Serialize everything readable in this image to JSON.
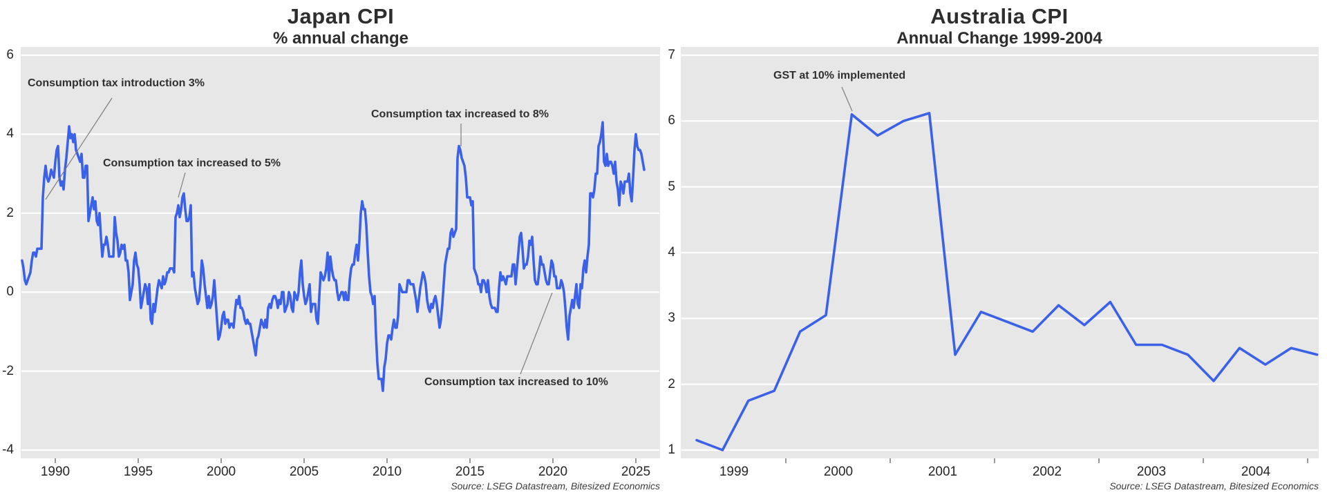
{
  "chart_data": [
    {
      "type": "line",
      "title": "Japan CPI",
      "subtitle": "% annual change",
      "source": "Source: LSEG Datastream, Bitesized Economics",
      "frequency": "monthly",
      "x_start": 1988.0,
      "x_step": 0.083333,
      "xlim": [
        1987.9,
        2026.5
      ],
      "ylim": [
        -4,
        6
      ],
      "grid": "horizontal-white-on-gray",
      "legend": "none",
      "line_color": "#3b61e6",
      "plot_background": "#e7e7e7",
      "y_ticks": [
        6,
        4,
        2,
        0,
        -2,
        -4
      ],
      "x_tick_labels": [
        "1990",
        "1995",
        "2000",
        "2005",
        "2010",
        "2015",
        "2020",
        "2025"
      ],
      "annotations": [
        "Consumption tax introduction 3%",
        "Consumption tax increased to 5%",
        "Consumption tax increased to 8%",
        "Consumption tax increased to 10%"
      ],
      "values": [
        0.8,
        0.6,
        0.3,
        0.2,
        0.3,
        0.4,
        0.5,
        0.8,
        1.0,
        1.0,
        0.9,
        1.1,
        1.1,
        1.1,
        1.1,
        2.4,
        2.9,
        3.2,
        2.9,
        2.8,
        2.9,
        3.1,
        3.0,
        2.9,
        3.3,
        3.6,
        3.7,
        2.9,
        2.7,
        2.8,
        2.6,
        3.1,
        3.4,
        3.8,
        4.2,
        3.9,
        4.0,
        3.8,
        4.0,
        3.6,
        3.5,
        3.4,
        3.3,
        3.5,
        2.9,
        2.9,
        3.2,
        3.2,
        1.8,
        2.0,
        2.2,
        2.4,
        2.1,
        2.3,
        1.8,
        1.7,
        2.0,
        1.4,
        0.9,
        1.2,
        1.2,
        1.4,
        1.2,
        0.9,
        0.9,
        0.9,
        0.9,
        1.9,
        1.5,
        1.3,
        0.9,
        1.0,
        1.2,
        1.1,
        1.2,
        0.8,
        0.8,
        0.5,
        -0.2,
        0.0,
        0.2,
        0.8,
        1.0,
        0.7,
        0.6,
        0.2,
        -0.4,
        -0.2,
        0.0,
        0.2,
        0.1,
        -0.3,
        0.2,
        -0.7,
        -0.8,
        -0.3,
        -0.5,
        -0.2,
        0.1,
        0.3,
        0.2,
        0.1,
        0.4,
        0.2,
        0.3,
        0.5,
        0.5,
        0.6,
        0.6,
        0.6,
        0.5,
        1.9,
        2.0,
        2.2,
        1.9,
        2.1,
        2.4,
        2.5,
        2.1,
        1.8,
        1.8,
        1.9,
        2.2,
        0.4,
        0.5,
        0.1,
        -0.1,
        -0.3,
        -0.2,
        0.2,
        0.8,
        0.6,
        0.2,
        -0.1,
        -0.4,
        -0.1,
        -0.4,
        -0.3,
        -0.1,
        0.3,
        -0.2,
        -0.7,
        -1.2,
        -1.1,
        -0.9,
        -0.6,
        -0.5,
        -0.8,
        -0.7,
        -0.7,
        -0.9,
        -0.8,
        -0.8,
        -0.9,
        -0.5,
        -0.2,
        -0.3,
        -0.1,
        -0.4,
        -0.4,
        -0.5,
        -0.7,
        -0.8,
        -0.7,
        -0.8,
        -0.8,
        -1.0,
        -1.2,
        -1.4,
        -1.6,
        -1.2,
        -1.1,
        -0.9,
        -0.7,
        -0.8,
        -0.9,
        -0.7,
        -0.9,
        -0.4,
        -0.3,
        -0.4,
        -0.2,
        -0.1,
        -0.1,
        -0.2,
        -0.4,
        -0.2,
        -0.3,
        0.0,
        0.0,
        -0.5,
        -0.4,
        -0.3,
        0.0,
        -0.1,
        -0.4,
        -0.5,
        0.0,
        -0.1,
        -0.2,
        0.0,
        0.5,
        0.8,
        0.2,
        -0.1,
        -0.3,
        -0.2,
        0.0,
        0.2,
        -0.5,
        -0.3,
        -0.3,
        -0.3,
        -0.7,
        -0.8,
        -0.1,
        0.5,
        0.4,
        0.3,
        0.4,
        0.6,
        1.0,
        0.3,
        0.9,
        0.6,
        0.4,
        0.3,
        0.3,
        0.0,
        -0.2,
        -0.1,
        0.0,
        0.0,
        -0.2,
        0.0,
        -0.2,
        -0.2,
        0.3,
        0.6,
        0.7,
        0.7,
        1.0,
        1.2,
        0.8,
        1.3,
        2.0,
        2.3,
        2.1,
        2.1,
        1.7,
        1.0,
        0.4,
        0.0,
        -0.1,
        -0.3,
        -0.1,
        -1.1,
        -1.8,
        -2.2,
        -2.2,
        -2.2,
        -2.5,
        -1.9,
        -1.7,
        -1.3,
        -1.1,
        -1.1,
        -1.2,
        -0.9,
        -0.7,
        -0.9,
        -0.9,
        -0.6,
        0.2,
        0.1,
        0.0,
        0.0,
        0.0,
        0.0,
        0.3,
        0.3,
        0.2,
        0.2,
        0.2,
        0.0,
        -0.2,
        -0.5,
        -0.2,
        0.1,
        0.3,
        0.5,
        0.4,
        0.2,
        -0.2,
        -0.4,
        -0.5,
        -0.3,
        -0.4,
        -0.2,
        -0.1,
        -0.3,
        -0.6,
        -0.9,
        -0.7,
        -0.3,
        0.2,
        0.7,
        0.9,
        1.1,
        1.1,
        1.5,
        1.6,
        1.4,
        1.5,
        1.6,
        3.4,
        3.7,
        3.6,
        3.4,
        3.3,
        3.2,
        2.9,
        2.4,
        2.4,
        2.4,
        2.2,
        2.3,
        0.6,
        0.5,
        0.4,
        0.2,
        0.2,
        0.0,
        0.3,
        0.3,
        0.2,
        0.0,
        0.3,
        -0.1,
        -0.3,
        -0.4,
        -0.4,
        -0.4,
        -0.5,
        -0.5,
        0.1,
        0.5,
        0.3,
        0.4,
        0.3,
        0.2,
        0.4,
        0.4,
        0.4,
        0.4,
        0.7,
        0.7,
        0.2,
        0.6,
        1.0,
        1.4,
        1.5,
        1.1,
        0.6,
        0.7,
        0.7,
        0.9,
        1.3,
        1.2,
        1.4,
        0.8,
        0.3,
        0.2,
        0.2,
        0.5,
        0.9,
        0.7,
        0.7,
        0.5,
        0.3,
        0.2,
        0.2,
        0.5,
        0.8,
        0.7,
        0.4,
        0.4,
        0.1,
        0.1,
        0.1,
        0.3,
        0.2,
        0.0,
        -0.4,
        -0.9,
        -1.2,
        -0.6,
        -0.4,
        -0.2,
        -0.4,
        -0.1,
        0.2,
        -0.3,
        -0.4,
        0.2,
        0.1,
        0.6,
        0.8,
        0.5,
        0.9,
        1.2,
        2.5,
        2.5,
        2.4,
        2.6,
        3.0,
        3.0,
        3.7,
        3.8,
        4.0,
        4.3,
        3.3,
        3.2,
        3.5,
        3.2,
        3.3,
        3.3,
        3.2,
        3.0,
        3.3,
        2.8,
        2.6,
        2.2,
        2.8,
        2.7,
        2.5,
        2.8,
        2.8,
        2.8,
        3.0,
        2.5,
        2.3,
        2.9,
        3.6,
        4.0,
        3.7,
        3.6,
        3.6,
        3.5,
        3.3,
        3.1
      ]
    },
    {
      "type": "line",
      "title": "Australia CPI",
      "subtitle": "Annual Change 1999-2004",
      "source": "Source: LSEG Datastream, Bitesized Economics",
      "frequency": "quarterly",
      "x_start": 1999.0,
      "x_step": 0.25,
      "xlim": [
        1998.9,
        2005.1
      ],
      "ylim": [
        1,
        7
      ],
      "grid": "horizontal-white-on-gray",
      "legend": "none",
      "line_color": "#3b61e6",
      "plot_background": "#e7e7e7",
      "y_ticks": [
        7,
        6,
        5,
        4,
        3,
        2,
        1
      ],
      "x_tick_labels": [
        "1999",
        "2000",
        "2001",
        "2002",
        "2003",
        "2004"
      ],
      "annotations": [
        "GST at 10% implemented"
      ],
      "values": [
        1.15,
        1.0,
        1.75,
        1.9,
        2.8,
        3.05,
        6.1,
        5.78,
        6.0,
        6.12,
        2.45,
        3.1,
        2.95,
        2.8,
        3.2,
        2.9,
        3.25,
        2.6,
        2.6,
        2.45,
        2.05,
        2.55,
        2.3,
        2.55,
        2.45
      ]
    }
  ]
}
